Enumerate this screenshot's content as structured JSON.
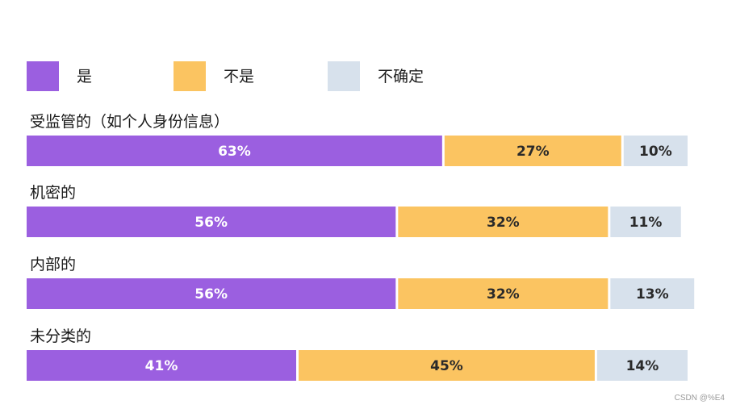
{
  "chart_data": {
    "type": "bar",
    "orientation": "horizontal",
    "stacked": true,
    "legend_position": "top",
    "grid": false,
    "xlim": [
      0,
      100
    ],
    "categories": [
      "受监管的（如个人身份信息）",
      "机密的",
      "内部的",
      "未分类的"
    ],
    "series": [
      {
        "name": "是",
        "color": "#9b5fe0",
        "label_color": "#ffffff",
        "values": [
          63,
          56,
          56,
          41
        ],
        "labels": [
          "63%",
          "56%",
          "56%",
          "41%"
        ]
      },
      {
        "name": "不是",
        "color": "#fbc461",
        "label_color": "#2a2a2a",
        "values": [
          27,
          32,
          32,
          45
        ],
        "labels": [
          "27%",
          "32%",
          "32%",
          "45%"
        ]
      },
      {
        "name": "不确定",
        "color": "#d7e1ec",
        "label_color": "#2a2a2a",
        "values": [
          10,
          11,
          13,
          14
        ],
        "labels": [
          "10%",
          "11%",
          "13%",
          "14%"
        ]
      }
    ]
  },
  "watermark": "CSDN @%E4"
}
